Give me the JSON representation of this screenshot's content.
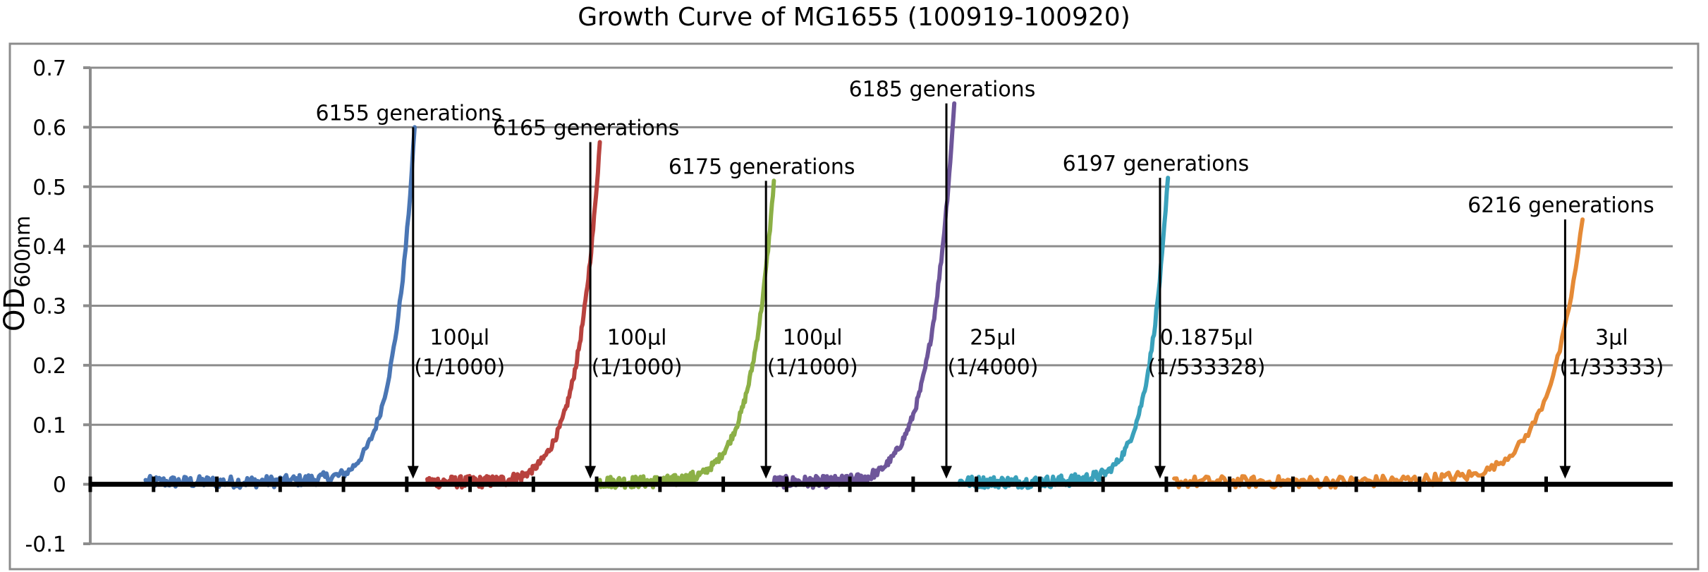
{
  "chart_data": {
    "type": "line",
    "title": "Growth Curve of MG1655 (100919-100920)",
    "ylabel": "OD",
    "ylabel_subscript": "600nm",
    "ylim": [
      -0.1,
      0.7
    ],
    "yticks": [
      -0.1,
      0,
      0.1,
      0.2,
      0.3,
      0.4,
      0.5,
      0.6,
      0.7
    ],
    "ytick_labels": [
      "-0.1",
      "0",
      "0.1",
      "0.2",
      "0.3",
      "0.4",
      "0.5",
      "0.6",
      "0.7"
    ],
    "xlim": [
      0,
      100
    ],
    "grid": true,
    "legend": "none",
    "series": [
      {
        "color": "#4a76b4",
        "x_start": 3.5,
        "x_end": 20.5,
        "lag_end": 16,
        "peak": 0.6
      },
      {
        "color": "#b8423e",
        "x_start": 21.3,
        "x_end": 32.2,
        "lag_end": 27.5,
        "peak": 0.575
      },
      {
        "color": "#8cb046",
        "x_start": 32.2,
        "x_end": 43.2,
        "lag_end": 38.5,
        "peak": 0.51
      },
      {
        "color": "#6e569a",
        "x_start": 43.2,
        "x_end": 54.6,
        "lag_end": 49.5,
        "peak": 0.64
      },
      {
        "color": "#3aa1bb",
        "x_start": 54.9,
        "x_end": 68.1,
        "lag_end": 64,
        "peak": 0.515
      },
      {
        "color": "#e58a36",
        "x_start": 68.5,
        "x_end": 94.3,
        "lag_end": 87.5,
        "peak": 0.445
      }
    ],
    "annotations": [
      {
        "label": "6155 generations",
        "x": 20.4,
        "y": 0.6,
        "dilution": "100μl",
        "ratio": "(1/1000)"
      },
      {
        "label": "6165 generations",
        "x": 31.6,
        "y": 0.575,
        "dilution": "100μl",
        "ratio": "(1/1000)"
      },
      {
        "label": "6175 generations",
        "x": 42.7,
        "y": 0.51,
        "dilution": "100μl",
        "ratio": "(1/1000)"
      },
      {
        "label": "6185 generations",
        "x": 54.1,
        "y": 0.64,
        "dilution": "25μl",
        "ratio": "(1/4000)"
      },
      {
        "label": "6197 generations",
        "x": 67.6,
        "y": 0.515,
        "dilution": "0.1875μl",
        "ratio": "(1/533328)"
      },
      {
        "label": "6216 generations",
        "x": 93.2,
        "y": 0.445,
        "dilution": "3μl",
        "ratio": "(1/33333)"
      }
    ]
  }
}
